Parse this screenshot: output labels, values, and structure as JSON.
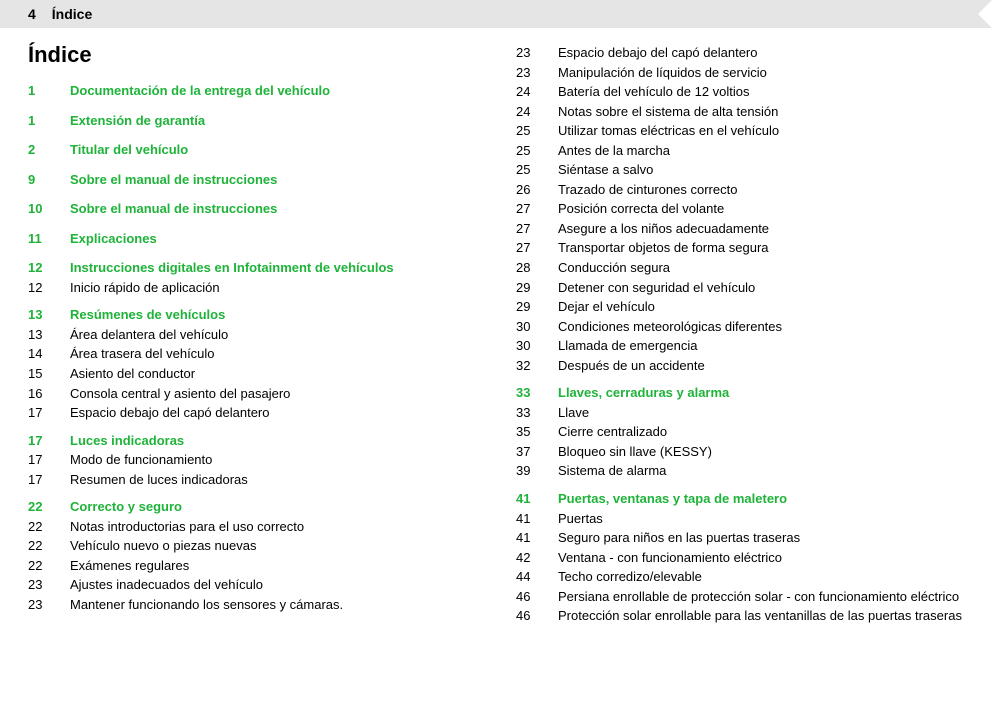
{
  "header": {
    "page": "4",
    "title": "Índice"
  },
  "mainTitle": "Índice",
  "colors": {
    "accent": "#1fb33a",
    "text": "#000000",
    "headerBg": "#e5e5e5"
  },
  "left": [
    {
      "type": "section",
      "page": "1",
      "text": "Documentación de la entrega del vehículo"
    },
    {
      "type": "section",
      "page": "1",
      "text": "Extensión de garantía",
      "gap": "lg"
    },
    {
      "type": "section",
      "page": "2",
      "text": "Titular del vehículo",
      "gap": "lg"
    },
    {
      "type": "section",
      "page": "9",
      "text": "Sobre el manual de instrucciones",
      "gap": "lg"
    },
    {
      "type": "section",
      "page": "10",
      "text": "Sobre el manual de instrucciones",
      "gap": "lg"
    },
    {
      "type": "section",
      "page": "11",
      "text": "Explicaciones",
      "gap": "lg"
    },
    {
      "type": "section",
      "page": "12",
      "text": "Instrucciones digitales en Infotainment de vehículos",
      "gap": "lg"
    },
    {
      "type": "sub",
      "page": "12",
      "text": "Inicio rápido de aplicación"
    },
    {
      "type": "section",
      "page": "13",
      "text": "Resúmenes de vehículos",
      "gap": "md"
    },
    {
      "type": "sub",
      "page": "13",
      "text": "Área delantera del vehículo"
    },
    {
      "type": "sub",
      "page": "14",
      "text": "Área trasera del vehículo"
    },
    {
      "type": "sub",
      "page": "15",
      "text": "Asiento del conductor"
    },
    {
      "type": "sub",
      "page": "16",
      "text": "Consola central y asiento del pasajero"
    },
    {
      "type": "sub",
      "page": "17",
      "text": "Espacio debajo del capó delantero"
    },
    {
      "type": "section",
      "page": "17",
      "text": "Luces indicadoras",
      "gap": "md"
    },
    {
      "type": "sub",
      "page": "17",
      "text": "Modo de funcionamiento"
    },
    {
      "type": "sub",
      "page": "17",
      "text": "Resumen de luces indicadoras"
    },
    {
      "type": "section",
      "page": "22",
      "text": "Correcto y seguro",
      "gap": "md"
    },
    {
      "type": "sub",
      "page": "22",
      "text": "Notas introductorias para el uso correcto"
    },
    {
      "type": "sub",
      "page": "22",
      "text": "Vehículo nuevo o piezas nuevas"
    },
    {
      "type": "sub",
      "page": "22",
      "text": "Exámenes regulares"
    },
    {
      "type": "sub",
      "page": "23",
      "text": "Ajustes inadecuados del vehículo"
    },
    {
      "type": "sub",
      "page": "23",
      "text": "Mantener funcionando los sensores y cámaras."
    }
  ],
  "right": [
    {
      "type": "sub",
      "page": "23",
      "text": "Espacio debajo del capó delantero"
    },
    {
      "type": "sub",
      "page": "23",
      "text": "Manipulación de líquidos de servicio"
    },
    {
      "type": "sub",
      "page": "24",
      "text": "Batería del vehículo de 12 voltios"
    },
    {
      "type": "sub",
      "page": "24",
      "text": "Notas sobre el sistema de alta tensión"
    },
    {
      "type": "sub",
      "page": "25",
      "text": "Utilizar tomas eléctricas en el vehículo"
    },
    {
      "type": "sub",
      "page": "25",
      "text": "Antes de la marcha"
    },
    {
      "type": "sub",
      "page": "25",
      "text": "Siéntase a salvo"
    },
    {
      "type": "sub",
      "page": "26",
      "text": "Trazado de cinturones correcto"
    },
    {
      "type": "sub",
      "page": "27",
      "text": "Posición correcta del volante"
    },
    {
      "type": "sub",
      "page": "27",
      "text": "Asegure a los niños adecuadamente"
    },
    {
      "type": "sub",
      "page": "27",
      "text": "Transportar objetos de forma segura"
    },
    {
      "type": "sub",
      "page": "28",
      "text": "Conducción segura"
    },
    {
      "type": "sub",
      "page": "29",
      "text": "Detener con seguridad el vehículo"
    },
    {
      "type": "sub",
      "page": "29",
      "text": "Dejar el vehículo"
    },
    {
      "type": "sub",
      "page": "30",
      "text": "Condiciones meteorológicas diferentes"
    },
    {
      "type": "sub",
      "page": "30",
      "text": "Llamada de emergencia"
    },
    {
      "type": "sub",
      "page": "32",
      "text": "Después de un accidente"
    },
    {
      "type": "section",
      "page": "33",
      "text": "Llaves, cerraduras y alarma",
      "gap": "md"
    },
    {
      "type": "sub",
      "page": "33",
      "text": "Llave"
    },
    {
      "type": "sub",
      "page": "35",
      "text": "Cierre centralizado"
    },
    {
      "type": "sub",
      "page": "37",
      "text": "Bloqueo sin llave (KESSY)"
    },
    {
      "type": "sub",
      "page": "39",
      "text": "Sistema de alarma"
    },
    {
      "type": "section",
      "page": "41",
      "text": "Puertas, ventanas y tapa de maletero",
      "gap": "md"
    },
    {
      "type": "sub",
      "page": "41",
      "text": "Puertas"
    },
    {
      "type": "sub",
      "page": "41",
      "text": "Seguro para niños en las puertas traseras"
    },
    {
      "type": "sub",
      "page": "42",
      "text": "Ventana - con funcionamiento eléctrico"
    },
    {
      "type": "sub",
      "page": "44",
      "text": "Techo corredizo/elevable"
    },
    {
      "type": "sub",
      "page": "46",
      "text": "Persiana enrollable de protección solar - con funcionamiento eléctrico"
    },
    {
      "type": "sub",
      "page": "46",
      "text": "Protección solar enrollable para las ventanillas de las puertas traseras"
    }
  ]
}
